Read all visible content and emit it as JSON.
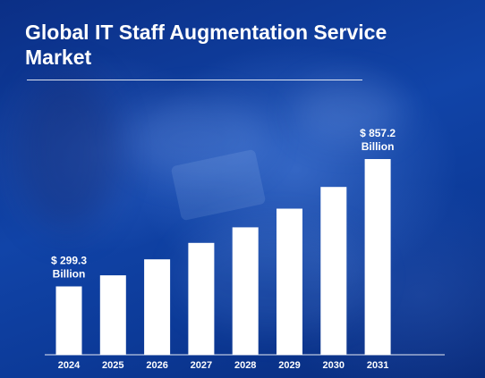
{
  "title": "Global IT Staff Augmentation Service Market",
  "chart_data": {
    "type": "bar",
    "title": "Global IT Staff Augmentation Service Market",
    "categories": [
      "2024",
      "2025",
      "2026",
      "2027",
      "2028",
      "2029",
      "2030",
      "2031"
    ],
    "values": [
      299.3,
      348,
      418,
      490,
      558,
      640,
      735,
      857.2
    ],
    "annotations": [
      {
        "category": "2024",
        "lines": [
          "$ 299.3",
          "Billion"
        ]
      },
      {
        "category": "2031",
        "lines": [
          "$ 857.2",
          "Billion"
        ]
      }
    ],
    "xlabel": "",
    "ylabel": "",
    "ylim": [
      0,
      857.2
    ],
    "grid": false,
    "colors": {
      "bar": "#ffffff",
      "background": "#0f3f9e",
      "text": "#ffffff"
    }
  }
}
